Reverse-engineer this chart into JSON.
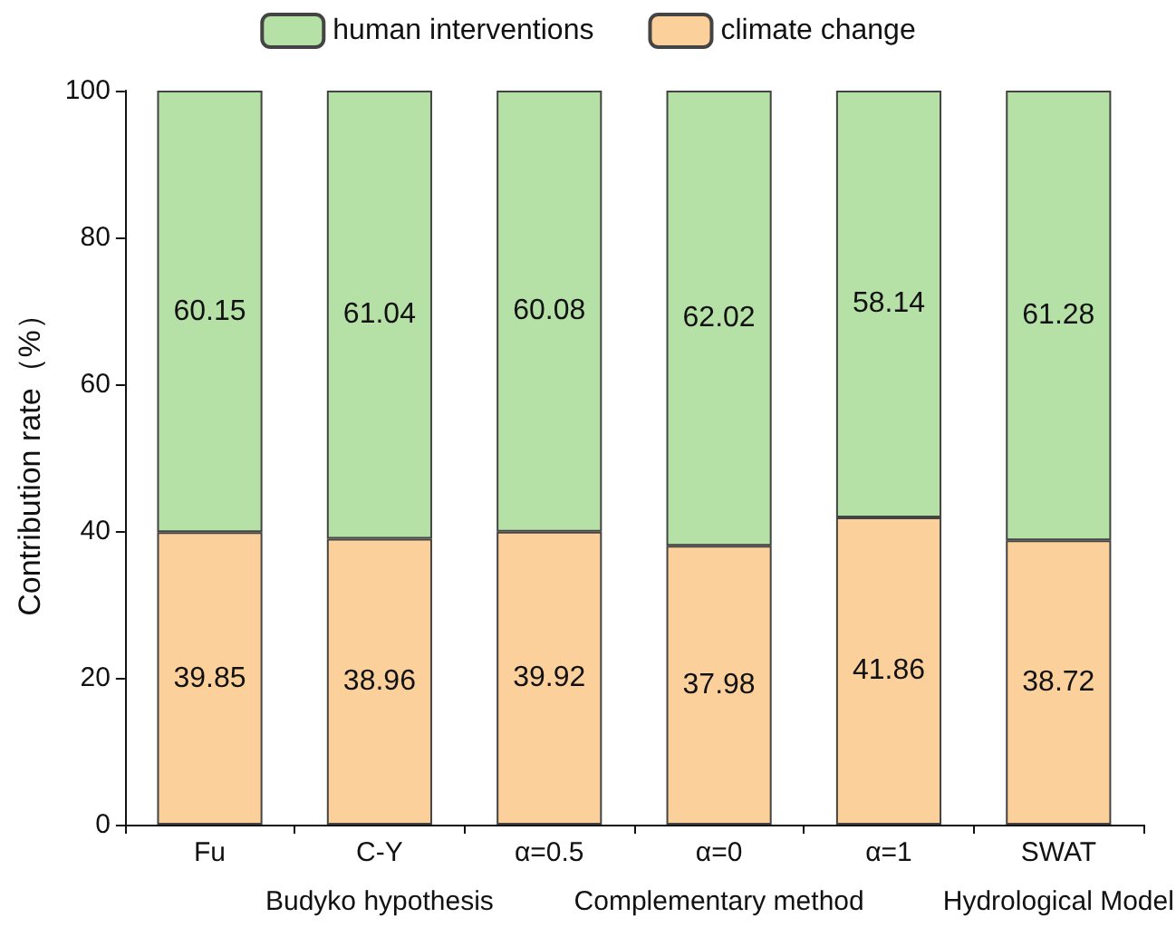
{
  "chart_data": {
    "type": "bar",
    "stacked": true,
    "ylabel": "Contribution rate（%）",
    "categories": [
      "Fu",
      "C-Y",
      "α=0.5",
      "α=0",
      "α=1",
      "SWAT"
    ],
    "series": [
      {
        "name": "climate change",
        "color": "#fcd09b",
        "values": [
          39.85,
          38.96,
          39.92,
          37.98,
          41.86,
          38.72
        ]
      },
      {
        "name": "human interventions",
        "color": "#b5e0a6",
        "values": [
          60.15,
          61.04,
          60.08,
          62.02,
          58.14,
          61.28
        ]
      }
    ],
    "ylim": [
      0,
      100
    ],
    "yticks": [
      0,
      20,
      40,
      60,
      80,
      100
    ],
    "grid": false,
    "legend": "top",
    "data_labels": true,
    "annotations": [
      "Budyko hypothesis",
      "Complementary method",
      "Hydrological Model"
    ]
  }
}
